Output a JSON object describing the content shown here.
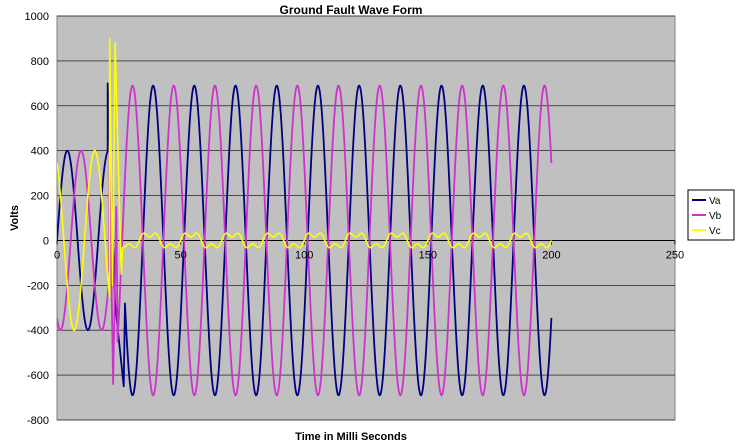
{
  "chart_data": {
    "type": "line",
    "title": "Ground Fault Wave Form",
    "xlabel": "Time in Milli Seconds",
    "ylabel": "Volts",
    "xlim": [
      0,
      250
    ],
    "ylim": [
      -800,
      1000
    ],
    "x_ticks": [
      0,
      50,
      100,
      150,
      200,
      250
    ],
    "y_ticks": [
      1000,
      800,
      600,
      400,
      200,
      0,
      -200,
      -400,
      -600,
      -800
    ],
    "grid": true,
    "plot_background": "#c0c0c0",
    "legend_position": "right",
    "frequency_hz": 60,
    "fault_time_ms": 22.5,
    "series": [
      {
        "name": "Va",
        "color": "#000080",
        "pre_fault": {
          "amplitude": 400,
          "phase_deg": 0
        },
        "post_fault": {
          "amplitude": 690,
          "phase_deg": -30
        },
        "x_range": [
          0,
          200
        ],
        "fault_spikes": [
          {
            "x": 20.5,
            "y": 700
          },
          {
            "x": 23.5,
            "y": -280
          },
          {
            "x": 27,
            "y": -650
          }
        ]
      },
      {
        "name": "Vb",
        "color": "#cc33cc",
        "pre_fault": {
          "amplitude": 400,
          "phase_deg": -120
        },
        "post_fault": {
          "amplitude": 690,
          "phase_deg": 150
        },
        "x_range": [
          0,
          200
        ],
        "fault_spikes": [
          {
            "x": 21.2,
            "y": 400
          },
          {
            "x": 22.7,
            "y": -640
          },
          {
            "x": 24,
            "y": 150
          }
        ]
      },
      {
        "name": "Vc",
        "color": "#ffff00",
        "pre_fault": {
          "amplitude": 400,
          "phase_deg": 120
        },
        "post_fault": {
          "amplitude": 30,
          "residual": "small harmonic ripple about 0"
        },
        "x_range": [
          0,
          200
        ],
        "fault_spikes": [
          {
            "x": 21.3,
            "y": 900
          },
          {
            "x": 22.5,
            "y": -200
          },
          {
            "x": 23.5,
            "y": 880
          },
          {
            "x": 24.7,
            "y": 380
          },
          {
            "x": 26,
            "y": -150
          }
        ]
      }
    ]
  }
}
